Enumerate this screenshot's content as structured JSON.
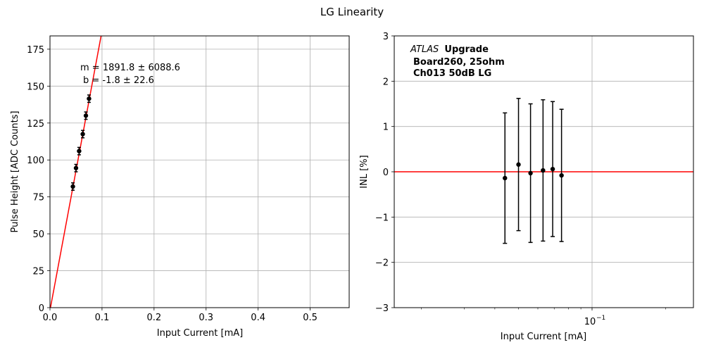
{
  "figure": {
    "suptitle": "LG Linearity"
  },
  "chart_data": [
    {
      "type": "scatter",
      "xlabel": "Input Current [mA]",
      "ylabel": "Pulse Height [ADC Counts]",
      "xlim": [
        0.0,
        0.575
      ],
      "ylim": [
        0,
        184
      ],
      "xscale": "linear",
      "grid": true,
      "xticks": [
        0.0,
        0.1,
        0.2,
        0.3,
        0.4,
        0.5
      ],
      "xtick_labels": [
        "0.0",
        "0.1",
        "0.2",
        "0.3",
        "0.4",
        "0.5"
      ],
      "yticks": [
        0,
        25,
        50,
        75,
        100,
        125,
        150,
        175
      ],
      "ytick_labels": [
        "0",
        "25",
        "50",
        "75",
        "100",
        "125",
        "150",
        "175"
      ],
      "points": {
        "x": [
          0.044,
          0.05,
          0.056,
          0.063,
          0.069,
          0.075
        ],
        "y": [
          82,
          94.5,
          106,
          117.5,
          130,
          141.5
        ],
        "yerr": [
          2.5,
          2.5,
          2.5,
          2.5,
          2.5,
          2.5
        ],
        "color": "#000000"
      },
      "fit": {
        "m": 1891.8,
        "b": -1.8,
        "color": "#ff0000"
      },
      "annotations": [
        "m = 1891.8 ± 6088.6",
        "b = -1.8 ± 22.6"
      ]
    },
    {
      "type": "scatter",
      "xlabel": "Input Current [mA]",
      "ylabel": "INL [%]",
      "xlim": [
        0.0155,
        0.26
      ],
      "ylim": [
        -3,
        3
      ],
      "xscale": "log",
      "grid": true,
      "xticks": [
        0.1
      ],
      "xtick_labels": [
        "10"
      ],
      "xtick_exponent": "−1",
      "yticks": [
        -3,
        -2,
        -1,
        0,
        1,
        2,
        3
      ],
      "ytick_labels": [
        "−3",
        "−2",
        "−1",
        "0",
        "1",
        "2",
        "3"
      ],
      "points": {
        "x": [
          0.044,
          0.05,
          0.056,
          0.063,
          0.069,
          0.075
        ],
        "y": [
          -0.14,
          0.16,
          -0.03,
          0.03,
          0.06,
          -0.08
        ],
        "yerr": [
          1.44,
          1.46,
          1.53,
          1.56,
          1.49,
          1.46
        ],
        "color": "#000000"
      },
      "reference_line": {
        "y": 0,
        "color": "#ff0000"
      },
      "legend": {
        "italic": "ATLAS",
        "bold": "Upgrade",
        "lines": [
          "Board260, 25ohm",
          "Ch013 50dB LG"
        ]
      }
    }
  ]
}
